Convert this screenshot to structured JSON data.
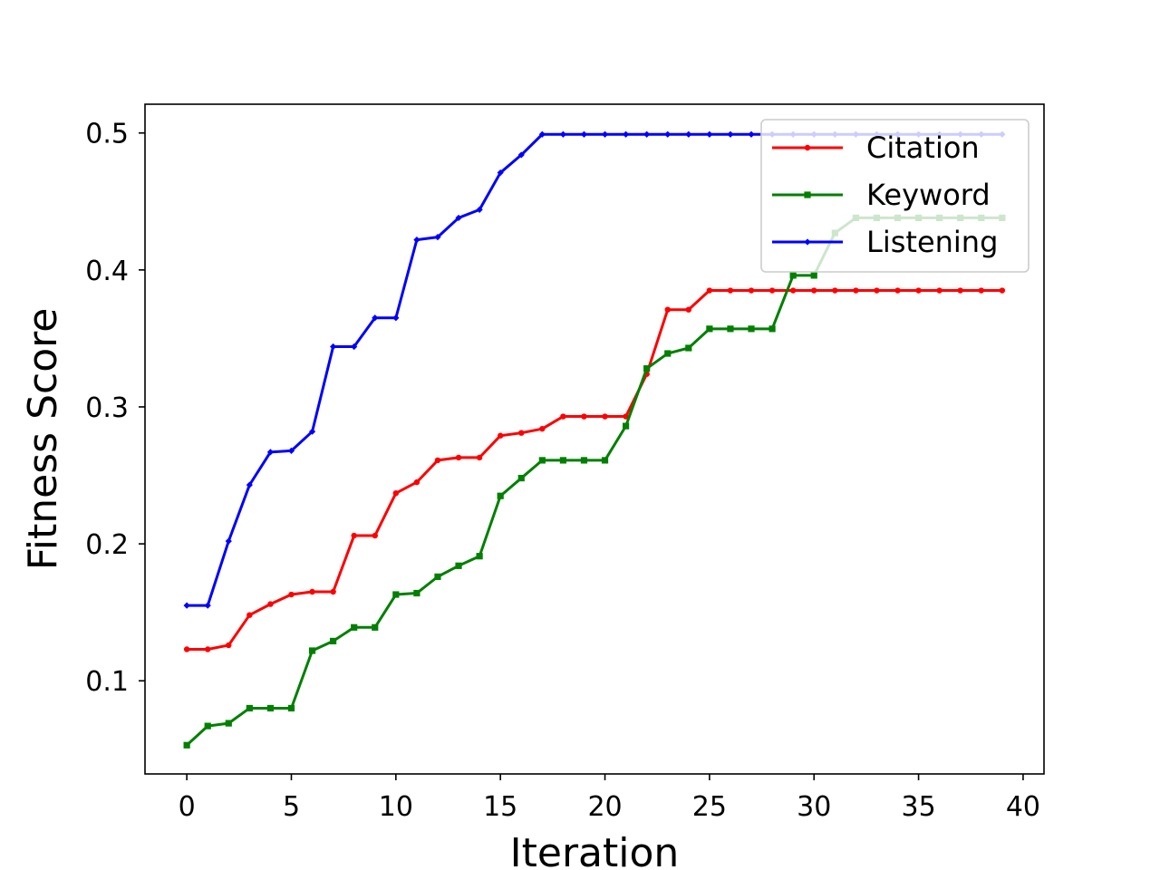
{
  "chart_data": {
    "type": "line",
    "xlabel": "Iteration",
    "ylabel": "Fitness Score",
    "xlim": [
      -2,
      41
    ],
    "ylim": [
      0.032,
      0.521
    ],
    "x_ticks": [
      0,
      5,
      10,
      15,
      20,
      25,
      30,
      35,
      40
    ],
    "y_ticks": [
      0.1,
      0.2,
      0.3,
      0.4,
      0.5
    ],
    "x_tick_labels": [
      "0",
      "5",
      "10",
      "15",
      "20",
      "25",
      "30",
      "35",
      "40"
    ],
    "y_tick_labels": [
      "0.1",
      "0.2",
      "0.3",
      "0.4",
      "0.5"
    ],
    "grid": false,
    "legend": {
      "placement": "top-right",
      "entries": [
        "Citation",
        "Keyword",
        "Listening"
      ]
    },
    "x": [
      0,
      1,
      2,
      3,
      4,
      5,
      6,
      7,
      8,
      9,
      10,
      11,
      12,
      13,
      14,
      15,
      16,
      17,
      18,
      19,
      20,
      21,
      22,
      23,
      24,
      25,
      26,
      27,
      28,
      29,
      30,
      31,
      32,
      33,
      34,
      35,
      36,
      37,
      38,
      39
    ],
    "series": [
      {
        "name": "Citation",
        "color": "#ff0000",
        "marker": "circle",
        "values": [
          0.123,
          0.123,
          0.126,
          0.148,
          0.156,
          0.163,
          0.165,
          0.165,
          0.206,
          0.206,
          0.237,
          0.245,
          0.261,
          0.263,
          0.263,
          0.279,
          0.281,
          0.284,
          0.293,
          0.293,
          0.293,
          0.293,
          0.324,
          0.371,
          0.371,
          0.385,
          0.385,
          0.385,
          0.385,
          0.385,
          0.385,
          0.385,
          0.385,
          0.385,
          0.385,
          0.385,
          0.385,
          0.385,
          0.385,
          0.385
        ]
      },
      {
        "name": "Keyword",
        "color": "#008000",
        "marker": "square",
        "values": [
          0.053,
          0.067,
          0.069,
          0.08,
          0.08,
          0.08,
          0.122,
          0.129,
          0.139,
          0.139,
          0.163,
          0.164,
          0.176,
          0.184,
          0.191,
          0.235,
          0.248,
          0.261,
          0.261,
          0.261,
          0.261,
          0.286,
          0.328,
          0.339,
          0.343,
          0.357,
          0.357,
          0.357,
          0.357,
          0.396,
          0.396,
          0.427,
          0.438,
          0.438,
          0.438,
          0.438,
          0.438,
          0.438,
          0.438,
          0.438
        ]
      },
      {
        "name": "Listening",
        "color": "#0000ff",
        "marker": "diamond",
        "values": [
          0.155,
          0.155,
          0.202,
          0.243,
          0.267,
          0.268,
          0.282,
          0.344,
          0.344,
          0.365,
          0.365,
          0.422,
          0.424,
          0.438,
          0.444,
          0.471,
          0.484,
          0.499,
          0.499,
          0.499,
          0.499,
          0.499,
          0.499,
          0.499,
          0.499,
          0.499,
          0.499,
          0.499,
          0.499,
          0.499,
          0.499,
          0.499,
          0.499,
          0.499,
          0.499,
          0.499,
          0.499,
          0.499,
          0.499,
          0.499
        ]
      }
    ]
  }
}
